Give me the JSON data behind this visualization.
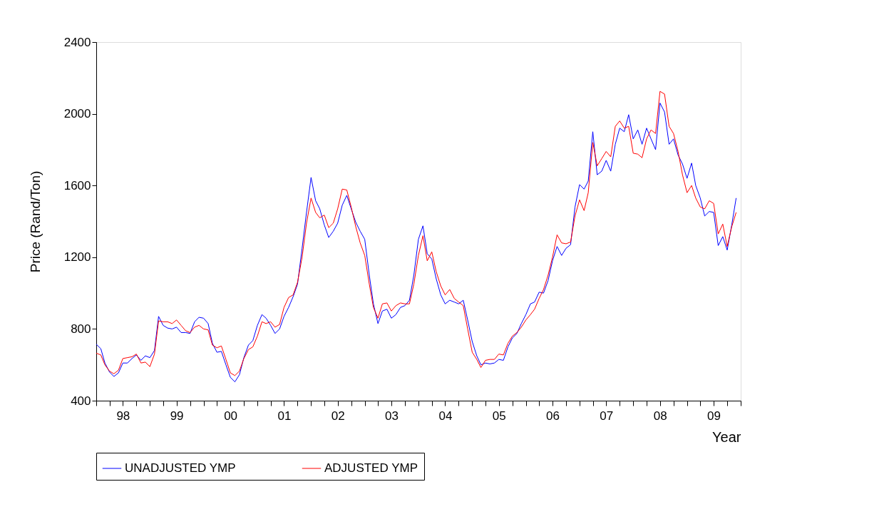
{
  "chart_data": {
    "type": "line",
    "ylabel": "Price (Rand/Ton)",
    "xlabel": "Year",
    "x": [
      "1998-01",
      "1998-02",
      "1998-03",
      "1998-04",
      "1998-05",
      "1998-06",
      "1998-07",
      "1998-08",
      "1998-09",
      "1998-10",
      "1998-11",
      "1998-12",
      "1999-01",
      "1999-02",
      "1999-03",
      "1999-04",
      "1999-05",
      "1999-06",
      "1999-07",
      "1999-08",
      "1999-09",
      "1999-10",
      "1999-11",
      "1999-12",
      "2000-01",
      "2000-02",
      "2000-03",
      "2000-04",
      "2000-05",
      "2000-06",
      "2000-07",
      "2000-08",
      "2000-09",
      "2000-10",
      "2000-11",
      "2000-12",
      "2001-01",
      "2001-02",
      "2001-03",
      "2001-04",
      "2001-05",
      "2001-06",
      "2001-07",
      "2001-08",
      "2001-09",
      "2001-10",
      "2001-11",
      "2001-12",
      "2002-01",
      "2002-02",
      "2002-03",
      "2002-04",
      "2002-05",
      "2002-06",
      "2002-07",
      "2002-08",
      "2002-09",
      "2002-10",
      "2002-11",
      "2002-12",
      "2003-01",
      "2003-02",
      "2003-03",
      "2003-04",
      "2003-05",
      "2003-06",
      "2003-07",
      "2003-08",
      "2003-09",
      "2003-10",
      "2003-11",
      "2003-12",
      "2004-01",
      "2004-02",
      "2004-03",
      "2004-04",
      "2004-05",
      "2004-06",
      "2004-07",
      "2004-08",
      "2004-09",
      "2004-10",
      "2004-11",
      "2004-12",
      "2005-01",
      "2005-02",
      "2005-03",
      "2005-04",
      "2005-05",
      "2005-06",
      "2005-07",
      "2005-08",
      "2005-09",
      "2005-10",
      "2005-11",
      "2005-12",
      "2006-01",
      "2006-02",
      "2006-03",
      "2006-04",
      "2006-05",
      "2006-06",
      "2006-07",
      "2006-08",
      "2006-09",
      "2006-10",
      "2006-11",
      "2006-12",
      "2007-01",
      "2007-02",
      "2007-03",
      "2007-04",
      "2007-05",
      "2007-06",
      "2007-07",
      "2007-08",
      "2007-09",
      "2007-10",
      "2007-11",
      "2007-12",
      "2008-01",
      "2008-02",
      "2008-03",
      "2008-04",
      "2008-05",
      "2008-06",
      "2008-07",
      "2008-08",
      "2008-09",
      "2008-10",
      "2008-11",
      "2008-12",
      "2009-01",
      "2009-02",
      "2009-03",
      "2009-04",
      "2009-05",
      "2009-06",
      "2009-07",
      "2009-08",
      "2009-09",
      "2009-10",
      "2009-11",
      "2009-12"
    ],
    "series": [
      {
        "name": "UNADJUSTED YMP",
        "color": "#0000ff",
        "values": [
          715,
          690,
          610,
          560,
          535,
          555,
          610,
          610,
          635,
          655,
          625,
          650,
          640,
          680,
          870,
          820,
          805,
          800,
          810,
          780,
          780,
          775,
          840,
          865,
          860,
          830,
          720,
          670,
          675,
          600,
          530,
          505,
          545,
          640,
          710,
          735,
          820,
          880,
          860,
          820,
          775,
          800,
          870,
          920,
          980,
          1050,
          1250,
          1450,
          1645,
          1515,
          1470,
          1380,
          1310,
          1345,
          1390,
          1490,
          1545,
          1470,
          1395,
          1345,
          1300,
          1100,
          940,
          830,
          900,
          910,
          860,
          880,
          920,
          930,
          960,
          1100,
          1300,
          1375,
          1220,
          1190,
          1080,
          990,
          940,
          960,
          950,
          940,
          960,
          850,
          730,
          650,
          600,
          610,
          605,
          610,
          630,
          625,
          700,
          750,
          775,
          830,
          880,
          940,
          950,
          1005,
          1000,
          1070,
          1180,
          1260,
          1210,
          1250,
          1270,
          1480,
          1605,
          1580,
          1625,
          1900,
          1660,
          1680,
          1740,
          1680,
          1830,
          1920,
          1900,
          1995,
          1860,
          1910,
          1830,
          1920,
          1860,
          1800,
          2060,
          2010,
          1830,
          1860,
          1770,
          1720,
          1640,
          1725,
          1600,
          1530,
          1430,
          1455,
          1450,
          1265,
          1315,
          1240,
          1380,
          1530
        ]
      },
      {
        "name": "ADJUSTED YMP",
        "color": "#ff0000",
        "values": [
          665,
          655,
          600,
          565,
          550,
          570,
          635,
          640,
          645,
          660,
          610,
          615,
          590,
          660,
          845,
          840,
          840,
          830,
          850,
          820,
          790,
          780,
          810,
          820,
          800,
          795,
          710,
          695,
          705,
          630,
          555,
          540,
          565,
          635,
          685,
          700,
          760,
          840,
          830,
          840,
          810,
          825,
          920,
          975,
          990,
          1060,
          1200,
          1390,
          1530,
          1450,
          1420,
          1435,
          1365,
          1390,
          1470,
          1580,
          1575,
          1480,
          1370,
          1280,
          1210,
          1050,
          920,
          860,
          940,
          945,
          900,
          930,
          945,
          940,
          940,
          1050,
          1210,
          1320,
          1180,
          1230,
          1120,
          1040,
          990,
          1020,
          970,
          950,
          930,
          800,
          670,
          630,
          585,
          625,
          630,
          630,
          660,
          655,
          720,
          760,
          780,
          810,
          850,
          880,
          910,
          970,
          1020,
          1100,
          1200,
          1325,
          1280,
          1275,
          1285,
          1430,
          1520,
          1460,
          1560,
          1840,
          1710,
          1750,
          1790,
          1760,
          1930,
          1960,
          1920,
          1930,
          1780,
          1775,
          1755,
          1860,
          1910,
          1890,
          2125,
          2110,
          1930,
          1890,
          1790,
          1660,
          1560,
          1600,
          1530,
          1480,
          1470,
          1515,
          1500,
          1330,
          1385,
          1260,
          1370,
          1450
        ]
      }
    ],
    "ylim": [
      400,
      2400
    ],
    "yticks": [
      400,
      800,
      1200,
      1600,
      2000,
      2400
    ],
    "xlim": [
      "1998-01",
      "2010-01"
    ],
    "xticks": [
      {
        "value": "1998-01",
        "label": null
      },
      {
        "value": "1998-04",
        "label": null
      },
      {
        "value": "1998-07",
        "label": "98"
      },
      {
        "value": "1998-10",
        "label": null
      },
      {
        "value": "1999-01",
        "label": null
      },
      {
        "value": "1999-04",
        "label": null
      },
      {
        "value": "1999-07",
        "label": "99"
      },
      {
        "value": "1999-10",
        "label": null
      },
      {
        "value": "2000-01",
        "label": null
      },
      {
        "value": "2000-04",
        "label": null
      },
      {
        "value": "2000-07",
        "label": "00"
      },
      {
        "value": "2000-10",
        "label": null
      },
      {
        "value": "2001-01",
        "label": null
      },
      {
        "value": "2001-04",
        "label": null
      },
      {
        "value": "2001-07",
        "label": "01"
      },
      {
        "value": "2001-10",
        "label": null
      },
      {
        "value": "2002-01",
        "label": null
      },
      {
        "value": "2002-04",
        "label": null
      },
      {
        "value": "2002-07",
        "label": "02"
      },
      {
        "value": "2002-10",
        "label": null
      },
      {
        "value": "2003-01",
        "label": null
      },
      {
        "value": "2003-04",
        "label": null
      },
      {
        "value": "2003-07",
        "label": "03"
      },
      {
        "value": "2003-10",
        "label": null
      },
      {
        "value": "2004-01",
        "label": null
      },
      {
        "value": "2004-04",
        "label": null
      },
      {
        "value": "2004-07",
        "label": "04"
      },
      {
        "value": "2004-10",
        "label": null
      },
      {
        "value": "2005-01",
        "label": null
      },
      {
        "value": "2005-04",
        "label": null
      },
      {
        "value": "2005-07",
        "label": "05"
      },
      {
        "value": "2005-10",
        "label": null
      },
      {
        "value": "2006-01",
        "label": null
      },
      {
        "value": "2006-04",
        "label": null
      },
      {
        "value": "2006-07",
        "label": "06"
      },
      {
        "value": "2006-10",
        "label": null
      },
      {
        "value": "2007-01",
        "label": null
      },
      {
        "value": "2007-04",
        "label": null
      },
      {
        "value": "2007-07",
        "label": "07"
      },
      {
        "value": "2007-10",
        "label": null
      },
      {
        "value": "2008-01",
        "label": null
      },
      {
        "value": "2008-04",
        "label": null
      },
      {
        "value": "2008-07",
        "label": "08"
      },
      {
        "value": "2008-10",
        "label": null
      },
      {
        "value": "2009-01",
        "label": null
      },
      {
        "value": "2009-04",
        "label": null
      },
      {
        "value": "2009-07",
        "label": "09"
      },
      {
        "value": "2009-10",
        "label": null
      },
      {
        "value": "2010-01",
        "label": null
      }
    ],
    "grid": false,
    "legend": "bottom",
    "marker": "none",
    "line_style": "solid"
  }
}
